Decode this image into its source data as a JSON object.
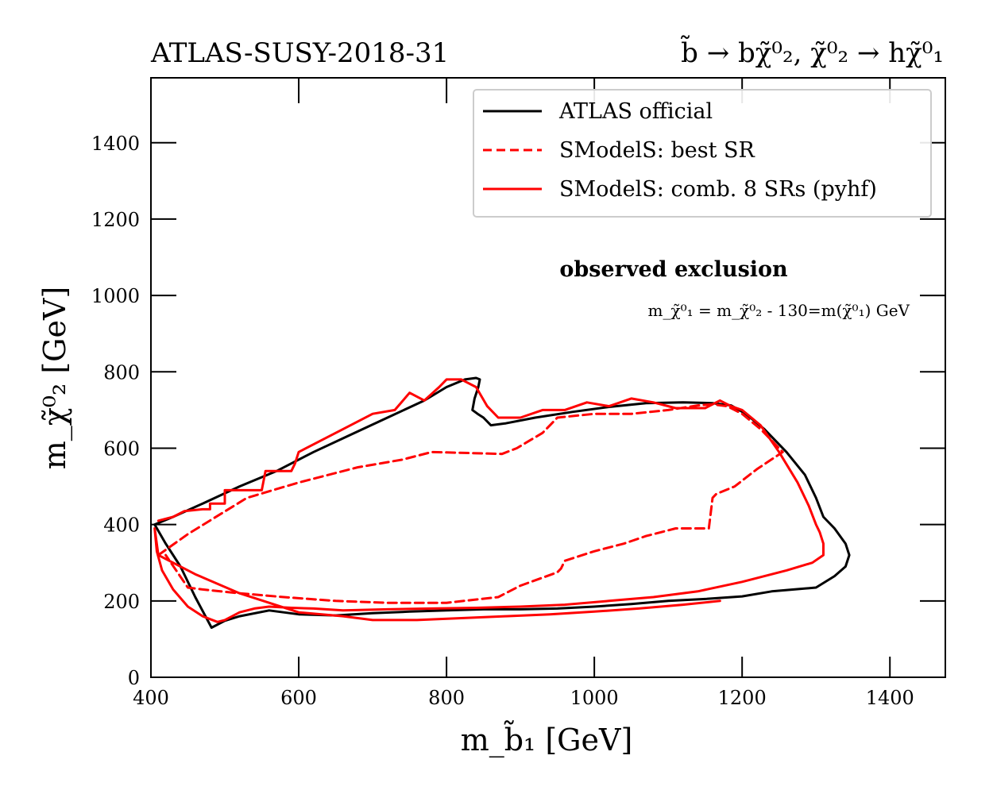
{
  "chart_data": {
    "type": "line",
    "title_left": "ATLAS-SUSY-2018-31",
    "title_right": "b̃ → bχ̃⁰₂, χ̃⁰₂ → hχ̃⁰₁",
    "xlabel": "m_b̃₁ [GeV]",
    "ylabel": "m_χ̃⁰₂ [GeV]",
    "xlim": [
      400,
      1475
    ],
    "ylim": [
      0,
      1570
    ],
    "xticks": [
      400,
      600,
      800,
      1000,
      1200,
      1400
    ],
    "yticks": [
      0,
      200,
      400,
      600,
      800,
      1000,
      1200,
      1400
    ],
    "grid": false,
    "legend_position": "top-right",
    "annotation_title": "observed exclusion",
    "annotation_text": "m_χ̃⁰₁ = m_χ̃⁰₂ - 130=m(χ̃⁰₁) GeV",
    "colors": {
      "official": "#000000",
      "smodels": "#ff0000"
    },
    "series": [
      {
        "name": "ATLAS official",
        "color": "#000000",
        "style": "solid",
        "x": [
          405,
          430,
          470,
          520,
          570,
          620,
          670,
          720,
          770,
          800,
          825,
          840,
          845,
          843,
          838,
          835,
          842,
          850,
          860,
          880,
          920,
          970,
          1020,
          1070,
          1120,
          1160,
          1185,
          1205,
          1230,
          1260,
          1285,
          1300,
          1310,
          1325,
          1340,
          1345,
          1340,
          1325,
          1300,
          1270,
          1240,
          1200,
          1150,
          1100,
          1050,
          1000,
          950,
          900,
          850,
          800,
          750,
          700,
          650,
          600,
          560,
          520,
          500,
          482,
          460,
          440,
          420,
          405
        ],
        "y": [
          400,
          420,
          455,
          500,
          540,
          590,
          635,
          680,
          725,
          760,
          780,
          784,
          780,
          760,
          730,
          700,
          690,
          680,
          660,
          665,
          680,
          695,
          708,
          718,
          720,
          718,
          712,
          690,
          650,
          590,
          530,
          470,
          420,
          390,
          350,
          320,
          290,
          265,
          235,
          230,
          225,
          212,
          205,
          200,
          192,
          185,
          180,
          178,
          178,
          175,
          172,
          168,
          162,
          165,
          175,
          160,
          148,
          130,
          210,
          290,
          350,
          400
        ]
      },
      {
        "name": "SModelS: best SR",
        "color": "#ff0000",
        "style": "dashed",
        "x": [
          410,
          450,
          530,
          600,
          680,
          740,
          780,
          875,
          895,
          930,
          950,
          1000,
          1050,
          1100,
          1140,
          1160,
          1180,
          1200,
          1225,
          1255,
          1220,
          1190,
          1165,
          1160,
          1155,
          1110,
          1070,
          1040,
          1000,
          960,
          955,
          950,
          900,
          870,
          800,
          720,
          650,
          580,
          520,
          470,
          450,
          450,
          420
        ],
        "y": [
          320,
          375,
          470,
          510,
          550,
          570,
          590,
          585,
          600,
          640,
          680,
          690,
          690,
          700,
          712,
          715,
          710,
          690,
          650,
          590,
          545,
          500,
          480,
          470,
          390,
          390,
          370,
          350,
          330,
          305,
          285,
          275,
          240,
          210,
          195,
          195,
          200,
          210,
          220,
          230,
          235,
          235,
          320
        ]
      },
      {
        "name": "SModelS: comb. 8 SRs (pyhf)",
        "color": "#ff0000",
        "style": "solid",
        "x": [
          410,
          430,
          445,
          470,
          480,
          480,
          500,
          500,
          530,
          550,
          555,
          575,
          590,
          595,
          600,
          630,
          660,
          700,
          730,
          750,
          770,
          790,
          800,
          820,
          840,
          855,
          870,
          900,
          930,
          960,
          990,
          1020,
          1050,
          1080,
          1110,
          1150,
          1170,
          1185,
          1200,
          1225,
          1250,
          1275,
          1290,
          1300,
          1305,
          1310,
          1310,
          1295,
          1260,
          1200,
          1140,
          1080,
          1020,
          960,
          900,
          840,
          780,
          720,
          660,
          620,
          590,
          560,
          540,
          520,
          500,
          490,
          470,
          450,
          430,
          415,
          408,
          405,
          410,
          420,
          460,
          520,
          600,
          660,
          700,
          760,
          820,
          880,
          940,
          1000,
          1060,
          1120,
          1170
        ],
        "y": [
          410,
          420,
          435,
          440,
          440,
          455,
          455,
          490,
          490,
          490,
          540,
          540,
          540,
          560,
          590,
          620,
          650,
          690,
          700,
          745,
          725,
          760,
          780,
          780,
          760,
          710,
          680,
          680,
          700,
          700,
          720,
          710,
          730,
          720,
          705,
          705,
          725,
          710,
          700,
          660,
          590,
          510,
          450,
          400,
          380,
          350,
          320,
          300,
          280,
          250,
          225,
          210,
          200,
          190,
          185,
          182,
          180,
          178,
          175,
          180,
          182,
          185,
          180,
          170,
          150,
          145,
          160,
          185,
          230,
          280,
          330,
          390,
          320,
          310,
          270,
          220,
          170,
          160,
          150,
          150,
          155,
          160,
          165,
          172,
          180,
          190,
          200
        ]
      }
    ]
  }
}
